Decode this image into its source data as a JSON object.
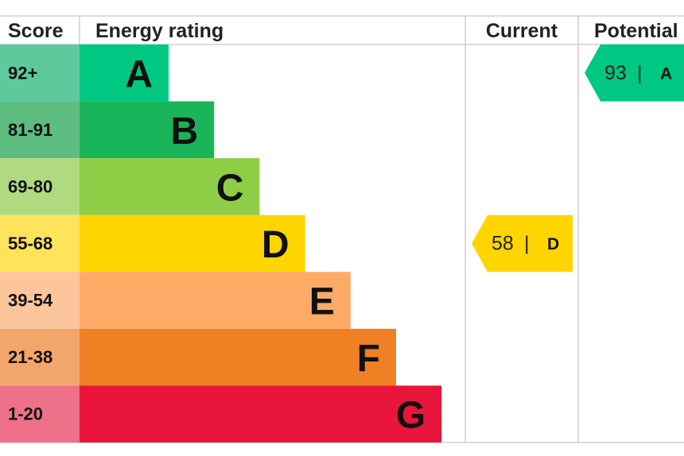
{
  "header": {
    "score": "Score",
    "rating": "Energy rating",
    "current": "Current",
    "potential": "Potential"
  },
  "bands": [
    {
      "score": "92+",
      "letter": "A",
      "color": "#00c781",
      "tint": "#5fc99e"
    },
    {
      "score": "81-91",
      "letter": "B",
      "color": "#19b459",
      "tint": "#5dbd80"
    },
    {
      "score": "69-80",
      "letter": "C",
      "color": "#8dce46",
      "tint": "#b0da80"
    },
    {
      "score": "55-68",
      "letter": "D",
      "color": "#ffd500",
      "tint": "#ffe35a"
    },
    {
      "score": "39-54",
      "letter": "E",
      "color": "#fcaa65",
      "tint": "#fdc59b"
    },
    {
      "score": "21-38",
      "letter": "F",
      "color": "#ef8023",
      "tint": "#f3a66b"
    },
    {
      "score": "1-20",
      "letter": "G",
      "color": "#e9153b",
      "tint": "#ef7089"
    }
  ],
  "current": {
    "value": 58,
    "separator": "|",
    "letter": "D"
  },
  "potential": {
    "value": 93,
    "separator": "|",
    "letter": "A"
  }
}
